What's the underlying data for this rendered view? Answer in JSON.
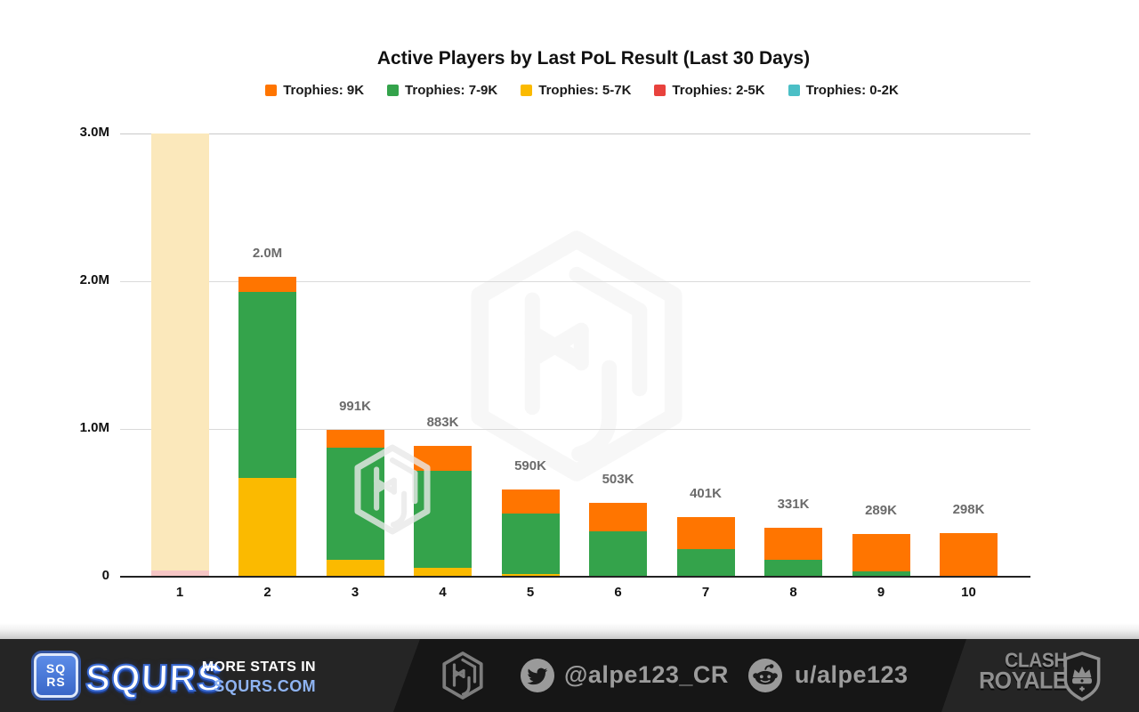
{
  "title": "Active Players by Last PoL Result (Last 30 Days)",
  "legend": [
    {
      "label": "Trophies: 9K",
      "color": "#FF7500"
    },
    {
      "label": "Trophies: 7-9K",
      "color": "#34A34B"
    },
    {
      "label": "Trophies: 5-7K",
      "color": "#FBBA00"
    },
    {
      "label": "Trophies: 2-5K",
      "color": "#E8423D"
    },
    {
      "label": "Trophies: 0-2K",
      "color": "#4BBFC6"
    }
  ],
  "chart_data": {
    "type": "bar",
    "stacked": true,
    "title": "Active Players by Last PoL Result (Last 30 Days)",
    "xlabel": "",
    "ylabel": "",
    "legend_position": "top",
    "grid": true,
    "ylim": [
      0,
      3000000
    ],
    "y_ticks": [
      {
        "label": "3.0M",
        "value": 3000000
      },
      {
        "label": "2.0M",
        "value": 2000000
      },
      {
        "label": "1.0M",
        "value": 1000000
      },
      {
        "label": "0",
        "value": 0
      }
    ],
    "categories": [
      "1",
      "2",
      "3",
      "4",
      "5",
      "6",
      "7",
      "8",
      "9",
      "10"
    ],
    "series_colors": {
      "Trophies: 9K": "#FF7500",
      "Trophies: 7-9K": "#34A34B",
      "Trophies: 5-7K": "#FBBA00",
      "Trophies: 2-5K": "#E8423D",
      "Trophies: 0-2K": "#4BBFC6"
    },
    "bars": [
      {
        "category": "1",
        "total_label": "",
        "muted": true,
        "clipped_at_axis_max": true,
        "segments": [
          {
            "series": "Trophies: 2-5K",
            "value": 40000,
            "color": "#F6C6C5"
          },
          {
            "series": "Trophies: 5-7K",
            "value": 2960000,
            "color": "#FBE8BB"
          }
        ]
      },
      {
        "category": "2",
        "total_label": "2.0M",
        "segments": [
          {
            "series": "Trophies: 5-7K",
            "value": 670000,
            "color": "#FBBA00"
          },
          {
            "series": "Trophies: 7-9K",
            "value": 1260000,
            "color": "#34A34B"
          },
          {
            "series": "Trophies: 9K",
            "value": 100000,
            "color": "#FF7500"
          }
        ]
      },
      {
        "category": "3",
        "total_label": "991K",
        "segments": [
          {
            "series": "Trophies: 5-7K",
            "value": 117000,
            "color": "#FBBA00"
          },
          {
            "series": "Trophies: 7-9K",
            "value": 754000,
            "color": "#34A34B"
          },
          {
            "series": "Trophies: 9K",
            "value": 120000,
            "color": "#FF7500"
          }
        ]
      },
      {
        "category": "4",
        "total_label": "883K",
        "segments": [
          {
            "series": "Trophies: 5-7K",
            "value": 62000,
            "color": "#FBBA00"
          },
          {
            "series": "Trophies: 7-9K",
            "value": 656000,
            "color": "#34A34B"
          },
          {
            "series": "Trophies: 9K",
            "value": 165000,
            "color": "#FF7500"
          }
        ]
      },
      {
        "category": "5",
        "total_label": "590K",
        "segments": [
          {
            "series": "Trophies: 5-7K",
            "value": 20000,
            "color": "#FBBA00"
          },
          {
            "series": "Trophies: 7-9K",
            "value": 405000,
            "color": "#34A34B"
          },
          {
            "series": "Trophies: 9K",
            "value": 165000,
            "color": "#FF7500"
          }
        ]
      },
      {
        "category": "6",
        "total_label": "503K",
        "segments": [
          {
            "series": "Trophies: 5-7K",
            "value": 8000,
            "color": "#FBBA00"
          },
          {
            "series": "Trophies: 7-9K",
            "value": 302000,
            "color": "#34A34B"
          },
          {
            "series": "Trophies: 9K",
            "value": 193000,
            "color": "#FF7500"
          }
        ]
      },
      {
        "category": "7",
        "total_label": "401K",
        "segments": [
          {
            "series": "Trophies: 7-9K",
            "value": 187000,
            "color": "#34A34B"
          },
          {
            "series": "Trophies: 9K",
            "value": 214000,
            "color": "#FF7500"
          }
        ]
      },
      {
        "category": "8",
        "total_label": "331K",
        "segments": [
          {
            "series": "Trophies: 7-9K",
            "value": 117000,
            "color": "#34A34B"
          },
          {
            "series": "Trophies: 9K",
            "value": 214000,
            "color": "#FF7500"
          }
        ]
      },
      {
        "category": "9",
        "total_label": "289K",
        "segments": [
          {
            "series": "Trophies: 7-9K",
            "value": 36000,
            "color": "#34A34B"
          },
          {
            "series": "Trophies: 9K",
            "value": 253000,
            "color": "#FF7500"
          }
        ]
      },
      {
        "category": "10",
        "total_label": "298K",
        "segments": [
          {
            "series": "Trophies: 7-9K",
            "value": 8000,
            "color": "#34A34B"
          },
          {
            "series": "Trophies: 9K",
            "value": 290000,
            "color": "#FF7500"
          }
        ]
      }
    ]
  },
  "footer": {
    "squrs_badge_line1": "SQ",
    "squrs_badge_line2": "RS",
    "squrs_wordmark": "SQURS",
    "more_stats_line1": "MORE STATS IN",
    "more_stats_line2": "SQURS.COM",
    "twitter_handle": "@alpe123_CR",
    "reddit_handle": "u/alpe123",
    "clash_line1": "CLASH",
    "clash_line2": "ROYALE"
  },
  "colors": {
    "footer_background": "#161616",
    "footer_panel": "#252525",
    "footer_text": "#9C9C9C",
    "squrs_blue": "#3A6BD4",
    "squrs_link_blue": "#8FB4F2",
    "gridline": "#DADADA",
    "axis": "#222222",
    "bar_total_label": "#6B6B6B"
  }
}
